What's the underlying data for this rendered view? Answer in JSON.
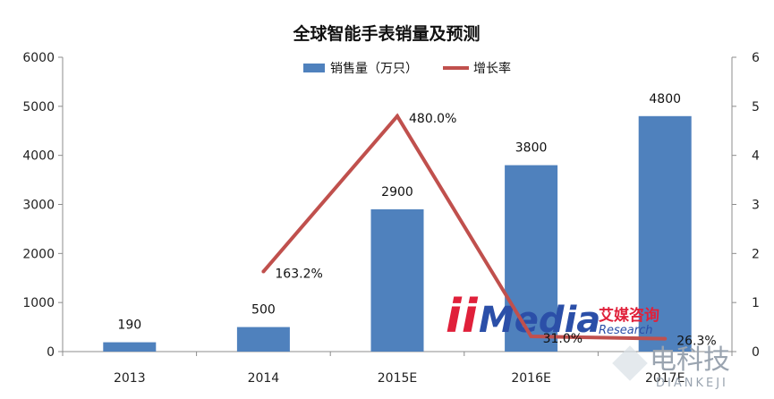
{
  "chart_data": {
    "type": "bar",
    "title": "全球智能手表销量及预测",
    "categories": [
      "2013",
      "2014",
      "2015E",
      "2016E",
      "2017E"
    ],
    "series": [
      {
        "name": "销售量（万只）",
        "kind": "bar",
        "axis": "left",
        "color": "#4f81bd",
        "values": [
          190,
          500,
          2900,
          3800,
          4800
        ],
        "labels": [
          "190",
          "500",
          "2900",
          "3800",
          "4800"
        ]
      },
      {
        "name": "增长率",
        "kind": "line",
        "axis": "right",
        "color": "#c0504d",
        "values": [
          null,
          1.632,
          4.8,
          0.31,
          0.263
        ],
        "labels": [
          "",
          "163.2%",
          "480.0%",
          "31.0%",
          "26.3%"
        ]
      }
    ],
    "y_left": {
      "ylim": [
        0,
        6000
      ],
      "ticks": [
        "0",
        "1000",
        "2000",
        "3000",
        "4000",
        "5000",
        "6000"
      ]
    },
    "y_right": {
      "ylim": [
        0,
        6
      ],
      "ticks": [
        "0",
        "1",
        "2",
        "3",
        "4",
        "5",
        "6"
      ]
    },
    "legend": "top-center",
    "grid": false
  },
  "watermark": {
    "logo_ii": "ii",
    "logo_media": "Media",
    "logo_cn": "艾媒咨询",
    "logo_research": "Research",
    "site_cn": "电科技",
    "site_en": "DIANKEJI"
  }
}
